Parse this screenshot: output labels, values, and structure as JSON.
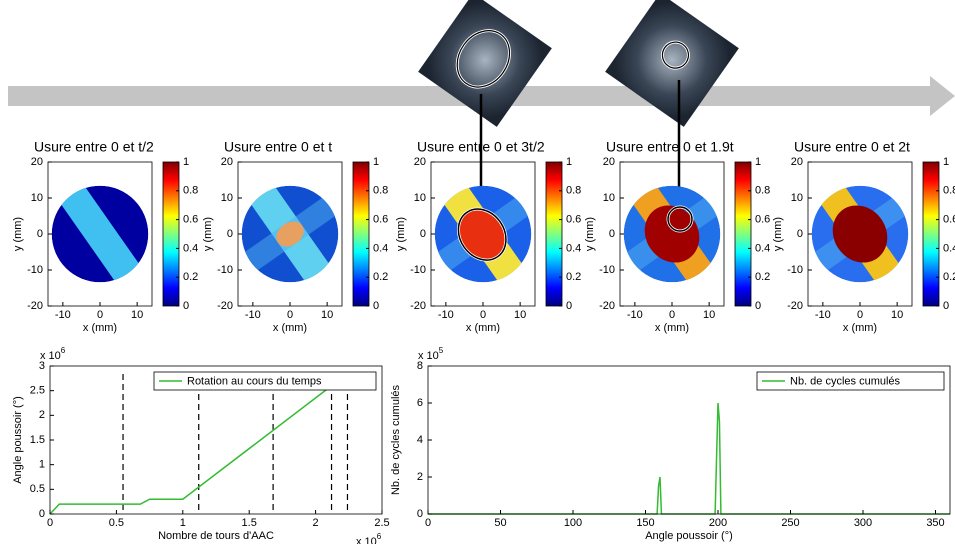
{
  "chart_data": [
    {
      "type": "heatmap",
      "title": "Usure entre 0 et t/2",
      "xlabel": "x (mm)",
      "ylabel": "y (mm)",
      "xlim": [
        -14,
        14
      ],
      "xticks": [
        -10,
        0,
        10
      ],
      "ylim": [
        -20,
        20
      ],
      "yticks": [
        -20,
        -10,
        0,
        10,
        20
      ],
      "clim": [
        0,
        1
      ],
      "cticks": [
        0,
        0.2,
        0.4,
        0.6,
        0.8,
        1
      ]
    },
    {
      "type": "heatmap",
      "title": "Usure entre 0 et t",
      "xlabel": "x (mm)",
      "ylabel": "y (mm)",
      "xlim": [
        -14,
        14
      ],
      "xticks": [
        -10,
        0,
        10
      ],
      "ylim": [
        -20,
        20
      ],
      "yticks": [
        -20,
        -10,
        0,
        10,
        20
      ],
      "clim": [
        0,
        1
      ],
      "cticks": [
        0,
        0.2,
        0.4,
        0.6,
        0.8,
        1
      ]
    },
    {
      "type": "heatmap",
      "title": "Usure entre 0 et 3t/2",
      "xlabel": "x (mm)",
      "ylabel": "y (mm)",
      "xlim": [
        -14,
        14
      ],
      "xticks": [
        -10,
        0,
        10
      ],
      "ylim": [
        -20,
        20
      ],
      "yticks": [
        -20,
        -10,
        0,
        10,
        20
      ],
      "clim": [
        0,
        1
      ],
      "cticks": [
        0,
        0.2,
        0.4,
        0.6,
        0.8,
        1
      ]
    },
    {
      "type": "heatmap",
      "title": "Usure entre 0 et 1.9t",
      "xlabel": "x (mm)",
      "ylabel": "y (mm)",
      "xlim": [
        -14,
        14
      ],
      "xticks": [
        -10,
        0,
        10
      ],
      "ylim": [
        -20,
        20
      ],
      "yticks": [
        -20,
        -10,
        0,
        10,
        20
      ],
      "clim": [
        0,
        1
      ],
      "cticks": [
        0,
        0.2,
        0.4,
        0.6,
        0.8,
        1
      ]
    },
    {
      "type": "heatmap",
      "title": "Usure entre 0 et 2t",
      "xlabel": "x (mm)",
      "ylabel": "y (mm)",
      "xlim": [
        -14,
        14
      ],
      "xticks": [
        -10,
        0,
        10
      ],
      "ylim": [
        -20,
        20
      ],
      "yticks": [
        -20,
        -10,
        0,
        10,
        20
      ],
      "clim": [
        0,
        1
      ],
      "cticks": [
        0,
        0.2,
        0.4,
        0.6,
        0.8,
        1
      ]
    },
    {
      "type": "line",
      "xlabel": "Nombre de tours d'AAC",
      "ylabel": "Angle poussoir (°)",
      "x_multiplier": {
        "base": "x 10",
        "exp": "6"
      },
      "y_multiplier": {
        "base": "x 10",
        "exp": "6"
      },
      "xlim": [
        0,
        2.5
      ],
      "xticks": [
        0,
        0.5,
        1,
        1.5,
        2,
        2.5
      ],
      "ylim": [
        0,
        3
      ],
      "yticks": [
        0,
        0.5,
        1,
        1.5,
        2,
        2.5,
        3
      ],
      "vlines": [
        0.55,
        1.12,
        1.68,
        2.12,
        2.24
      ],
      "legend": "upper right",
      "series": [
        {
          "name": "Rotation au cours du temps",
          "color": "#33bb33",
          "x": [
            0,
            0.07,
            0.68,
            0.75,
            1.0,
            2.12
          ],
          "values": [
            0,
            0.2,
            0.2,
            0.3,
            0.3,
            2.6
          ]
        }
      ]
    },
    {
      "type": "line",
      "xlabel": "Angle poussoir (°)",
      "ylabel": "Nb. de cycles cumulés",
      "y_multiplier": {
        "base": "x 10",
        "exp": "5"
      },
      "xlim": [
        0,
        360
      ],
      "xticks": [
        0,
        50,
        100,
        150,
        200,
        250,
        300,
        350
      ],
      "ylim": [
        0,
        8
      ],
      "yticks": [
        0,
        2,
        4,
        6,
        8
      ],
      "legend": "upper right",
      "series": [
        {
          "name": "Nb. de cycles cumulés",
          "color": "#33bb33",
          "x": [
            0,
            158,
            159,
            160,
            161,
            162,
            198,
            199,
            200,
            201,
            202,
            360
          ],
          "values": [
            0,
            0,
            1.5,
            2,
            0,
            0,
            0,
            3,
            6,
            5,
            0,
            0
          ]
        }
      ]
    }
  ]
}
